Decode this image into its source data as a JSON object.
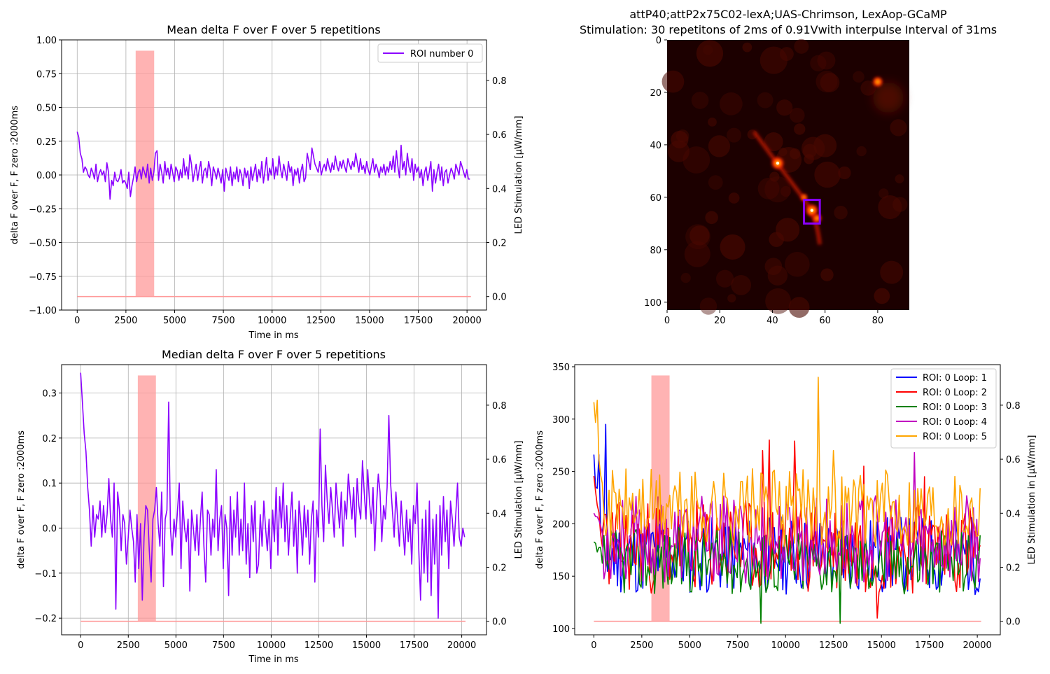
{
  "colors": {
    "mean": "#8b00ff",
    "median": "#8b00ff",
    "stim": "#ff9999",
    "grid": "#b0b0b0",
    "loop1": "#0000ff",
    "loop2": "#ff0000",
    "loop3": "#008000",
    "loop4": "#c000c0",
    "loop5": "#ffa500",
    "roi_box": "#8b00ff"
  },
  "chart_data": [
    {
      "id": "mean",
      "type": "line",
      "title": "Mean delta F over F over 5 repetitions",
      "xlabel": "Time in ms",
      "ylabel": "delta F over F, F zero :2000ms",
      "y2label": "LED Stimulation [μW/mm]",
      "xlim": [
        -800,
        21000
      ],
      "ylim": [
        -1.0,
        1.0
      ],
      "y2lim": [
        -0.05,
        0.95
      ],
      "xticks": [
        "0",
        "2500",
        "5000",
        "7500",
        "10000",
        "12500",
        "15000",
        "17500",
        "20000"
      ],
      "yticks": [
        "−1.00",
        "−0.75",
        "−0.50",
        "−0.25",
        "0.00",
        "0.25",
        "0.50",
        "0.75",
        "1.00"
      ],
      "y2ticks": [
        "0.0",
        "0.2",
        "0.4",
        "0.6",
        "0.8"
      ],
      "grid": true,
      "legend": {
        "position": "top-right",
        "entries": [
          "ROI number 0"
        ]
      },
      "series": [
        {
          "name": "ROI number 0",
          "x_start": 0,
          "x_end": 20150,
          "values": [
            0.32,
            0.28,
            0.16,
            0.12,
            0.02,
            0.06,
            0.04,
            0.0,
            -0.02,
            0.05,
            0.02,
            -0.03,
            0.08,
            -0.05,
            0.01,
            0.04,
            0.0,
            0.03,
            -0.05,
            0.09,
            0.02,
            -0.18,
            -0.04,
            -0.08,
            0.02,
            -0.04,
            -0.05,
            -0.02,
            0.04,
            -0.06,
            -0.04,
            -0.06,
            -0.1,
            0.02,
            -0.16,
            -0.08,
            -0.02,
            0.06,
            -0.05,
            0.02,
            0.04,
            -0.03,
            0.06,
            0.02,
            -0.02,
            0.08,
            -0.06,
            0.05,
            -0.04,
            0.02,
            0.16,
            0.18,
            -0.04,
            0.08,
            0.02,
            -0.06,
            0.1,
            0.0,
            0.05,
            -0.03,
            0.08,
            0.02,
            -0.05,
            0.06,
            0.03,
            -0.04,
            0.04,
            -0.02,
            0.12,
            0.0,
            0.06,
            -0.03,
            0.15,
            0.08,
            -0.05,
            0.02,
            0.08,
            -0.04,
            0.04,
            0.1,
            -0.06,
            0.03,
            0.05,
            -0.02,
            0.1,
            0.04,
            -0.08,
            0.06,
            0.02,
            -0.03,
            0.05,
            0.0,
            -0.06,
            0.04,
            -0.12,
            0.05,
            0.0,
            -0.04,
            0.06,
            -0.08,
            0.02,
            -0.03,
            0.06,
            -0.05,
            0.04,
            0.0,
            -0.08,
            0.05,
            -0.02,
            0.03,
            -0.1,
            0.06,
            -0.04,
            0.02,
            0.08,
            -0.05,
            0.04,
            -0.02,
            0.1,
            -0.06,
            0.03,
            0.13,
            -0.04,
            0.05,
            0.0,
            0.12,
            -0.03,
            0.06,
            0.0,
            0.14,
            0.04,
            -0.02,
            0.08,
            0.02,
            -0.04,
            0.1,
            0.02,
            0.06,
            -0.08,
            0.04,
            0.0,
            0.05,
            -0.06,
            0.03,
            0.08,
            -0.05,
            -0.02,
            0.16,
            0.1,
            0.04,
            0.2,
            0.14,
            0.08,
            0.05,
            0.02,
            0.1,
            0.0,
            0.05,
            0.08,
            0.03,
            0.12,
            0.06,
            0.02,
            0.09,
            0.04,
            0.14,
            0.07,
            0.03,
            0.1,
            0.05,
            0.11,
            0.06,
            0.02,
            0.12,
            0.08,
            0.04,
            0.1,
            0.06,
            0.16,
            0.09,
            0.02,
            0.12,
            0.04,
            0.07,
            0.01,
            0.1,
            0.04,
            0.0,
            0.06,
            0.12,
            0.02,
            0.08,
            0.04,
            -0.02,
            0.06,
            0.02,
            0.08,
            0.0,
            0.06,
            0.02,
            0.1,
            0.04,
            0.14,
            0.02,
            0.18,
            0.06,
            -0.02,
            0.22,
            0.04,
            0.1,
            0.0,
            0.16,
            0.06,
            0.02,
            0.12,
            -0.04,
            0.08,
            0.02,
            0.06,
            -0.02,
            0.04,
            -0.08,
            0.02,
            0.06,
            -0.04,
            0.02,
            0.1,
            -0.12,
            0.04,
            -0.06,
            0.02,
            0.08,
            -0.04,
            0.06,
            -0.08,
            0.02,
            0.04,
            -0.06,
            0.0,
            0.05,
            0.02,
            -0.03,
            0.08,
            0.04,
            0.0,
            0.1,
            0.06,
            0.02,
            -0.02,
            0.04,
            -0.03,
            -0.03
          ]
        }
      ],
      "stim": {
        "on_start": 3000,
        "on_end": 3950,
        "amplitude": 0.91,
        "line_start": 0,
        "line_end": 20200
      }
    },
    {
      "id": "median",
      "type": "line",
      "title": "Median delta F over F over 5 repetitions",
      "xlabel": "Time in ms",
      "ylabel": "delta F over F, F zero :2000ms",
      "y2label": "LED Stimulation [μW/mm]",
      "xlim": [
        -1000,
        21300
      ],
      "ylim": [
        -0.237,
        0.363
      ],
      "y2lim": [
        -0.05,
        0.95
      ],
      "xticks": [
        "0",
        "2500",
        "5000",
        "7500",
        "10000",
        "12500",
        "15000",
        "17500",
        "20000"
      ],
      "yticks": [
        "−0.2",
        "−0.1",
        "0.0",
        "0.1",
        "0.2",
        "0.3"
      ],
      "y2ticks": [
        "0.0",
        "0.2",
        "0.4",
        "0.6",
        "0.8"
      ],
      "grid": true,
      "series": [
        {
          "name": "",
          "x_start": 0,
          "x_end": 20150,
          "values": [
            0.345,
            0.28,
            0.21,
            0.17,
            0.09,
            0.04,
            -0.04,
            0.05,
            -0.02,
            0.03,
            0.02,
            0.06,
            -0.02,
            0.05,
            -0.01,
            0.03,
            0.11,
            0.02,
            -0.02,
            0.1,
            -0.18,
            0.08,
            0.04,
            -0.05,
            0.03,
            0.01,
            -0.08,
            -0.02,
            0.04,
            0.0,
            -0.03,
            -0.12,
            0.03,
            -0.09,
            0.01,
            -0.16,
            -0.02,
            0.05,
            0.04,
            -0.05,
            -0.12,
            0.02,
            0.04,
            0.09,
            0.01,
            -0.04,
            0.08,
            -0.13,
            0.02,
            0.04,
            0.28,
            0.0,
            -0.06,
            0.02,
            -0.02,
            0.04,
            0.1,
            -0.09,
            0.06,
            0.0,
            -0.03,
            0.02,
            -0.14,
            0.04,
            0.0,
            -0.05,
            0.03,
            -0.06,
            0.02,
            0.08,
            -0.04,
            -0.12,
            0.04,
            0.03,
            -0.06,
            0.02,
            -0.02,
            0.13,
            -0.05,
            0.02,
            0.05,
            -0.09,
            0.03,
            0.0,
            -0.15,
            0.07,
            -0.06,
            0.04,
            -0.02,
            0.08,
            -0.06,
            0.02,
            -0.05,
            0.1,
            -0.08,
            0.01,
            -0.11,
            0.05,
            -0.03,
            0.06,
            -0.1,
            -0.08,
            0.03,
            -0.04,
            0.06,
            0.0,
            -0.05,
            0.02,
            -0.09,
            0.04,
            -0.03,
            0.09,
            -0.06,
            0.07,
            0.0,
            0.1,
            -0.03,
            0.05,
            -0.06,
            0.02,
            0.08,
            -0.04,
            0.04,
            -0.1,
            0.06,
            0.01,
            -0.06,
            0.05,
            -0.02,
            0.04,
            -0.08,
            0.02,
            0.06,
            -0.12,
            0.04,
            -0.02,
            0.22,
            0.05,
            -0.03,
            0.14,
            0.06,
            0.01,
            0.09,
            0.04,
            -0.02,
            0.1,
            0.05,
            0.0,
            0.08,
            -0.04,
            0.06,
            0.02,
            0.12,
            0.07,
            0.02,
            0.09,
            -0.02,
            0.11,
            0.05,
            0.02,
            0.15,
            0.08,
            0.02,
            0.13,
            0.06,
            0.01,
            0.09,
            -0.05,
            0.05,
            0.12,
            0.08,
            -0.03,
            0.05,
            0.02,
            0.09,
            0.25,
            0.1,
            0.04,
            -0.02,
            0.08,
            0.02,
            -0.04,
            0.06,
            0.0,
            -0.06,
            0.04,
            -0.03,
            0.02,
            -0.08,
            0.05,
            0.01,
            0.1,
            -0.05,
            -0.16,
            0.02,
            -0.1,
            0.04,
            -0.12,
            0.06,
            -0.15,
            0.02,
            -0.08,
            0.03,
            -0.2,
            0.05,
            -0.06,
            0.07,
            -0.03,
            0.04,
            -0.09,
            0.06,
            0.02,
            -0.04,
            0.03,
            0.1,
            -0.02,
            -0.04,
            0.0,
            -0.02
          ]
        }
      ],
      "stim": {
        "on_start": 3000,
        "on_end": 3950,
        "amplitude": 0.91,
        "line_start": 0,
        "line_end": 20200
      }
    },
    {
      "id": "image",
      "type": "heatmap",
      "title": "attP40;attP2x75C02-lexA;UAS-Chrimson, LexAop-GCaMP\nStimulation: 30 repetitons of 2ms of 0.91Vwith interpulse Interval of 31ms",
      "xlim": [
        0,
        92
      ],
      "ylim": [
        103,
        0
      ],
      "xticks": [
        "0",
        "20",
        "40",
        "60",
        "80"
      ],
      "yticks": [
        "0",
        "20",
        "40",
        "60",
        "80",
        "100"
      ],
      "roi": {
        "x": 52,
        "y": 61,
        "w": 6,
        "h": 9
      },
      "hotspots": [
        {
          "x": 42,
          "y": 47,
          "v": 1.0
        },
        {
          "x": 55,
          "y": 65,
          "v": 1.0
        },
        {
          "x": 80,
          "y": 16,
          "v": 0.8
        },
        {
          "x": 57,
          "y": 68,
          "v": 0.7
        },
        {
          "x": 52,
          "y": 60,
          "v": 0.55
        }
      ]
    },
    {
      "id": "loops",
      "type": "line",
      "title": "",
      "xlabel": "",
      "ylabel": "delta F over F, F zero :2000ms",
      "y2label": "LED Stimulation in [μW/mm]",
      "xlim": [
        -1000,
        21200
      ],
      "ylim": [
        94,
        352
      ],
      "y2lim": [
        -0.05,
        0.95
      ],
      "xticks": [
        "0",
        "2500",
        "5000",
        "7500",
        "10000",
        "12500",
        "15000",
        "17500",
        "20000"
      ],
      "yticks": [
        "100",
        "150",
        "200",
        "250",
        "300",
        "350"
      ],
      "y2ticks": [
        "0.0",
        "0.2",
        "0.4",
        "0.6",
        "0.8"
      ],
      "grid": false,
      "legend": {
        "position": "top-right",
        "entries": [
          "ROI: 0 Loop: 1",
          "ROI: 0 Loop: 2",
          "ROI: 0 Loop: 3",
          "ROI: 0 Loop: 4",
          "ROI: 0 Loop: 5"
        ]
      },
      "series": [
        {
          "name": "ROI: 0 Loop: 1",
          "color_key": "loop1",
          "x_start": 0,
          "x_end": 20150,
          "base": 170,
          "spread": 38,
          "seed": 11,
          "start": 258,
          "peaks": [
            [
              3,
              266
            ],
            [
              7,
              295
            ]
          ]
        },
        {
          "name": "ROI: 0 Loop: 2",
          "color_key": "loop2",
          "x_start": 0,
          "x_end": 20150,
          "base": 178,
          "spread": 45,
          "seed": 23,
          "start": 237,
          "peaks": [
            [
              100,
              270
            ],
            [
              104,
              280
            ],
            [
              119,
              279
            ],
            [
              160,
              255
            ],
            [
              168,
              110
            ],
            [
              196,
              245
            ]
          ]
        },
        {
          "name": "ROI: 0 Loop: 3",
          "color_key": "loop3",
          "x_start": 0,
          "x_end": 20150,
          "base": 165,
          "spread": 32,
          "seed": 37,
          "start": 180,
          "peaks": [
            [
              99,
              105
            ],
            [
              146,
              105
            ]
          ]
        },
        {
          "name": "ROI: 0 Loop: 4",
          "color_key": "loop4",
          "x_start": 0,
          "x_end": 20150,
          "base": 185,
          "spread": 42,
          "seed": 53,
          "start": 220,
          "peaks": [
            [
              190,
              268
            ]
          ]
        },
        {
          "name": "ROI: 0 Loop: 5",
          "color_key": "loop5",
          "x_start": 0,
          "x_end": 20150,
          "base": 215,
          "spread": 38,
          "seed": 71,
          "start": 325,
          "peaks": [
            [
              2,
              318
            ],
            [
              133,
              340
            ],
            [
              142,
              270
            ]
          ]
        }
      ],
      "stim": {
        "on_start": 3000,
        "on_end": 3950,
        "amplitude": 0.91,
        "line_start": 0,
        "line_end": 20200
      }
    }
  ]
}
